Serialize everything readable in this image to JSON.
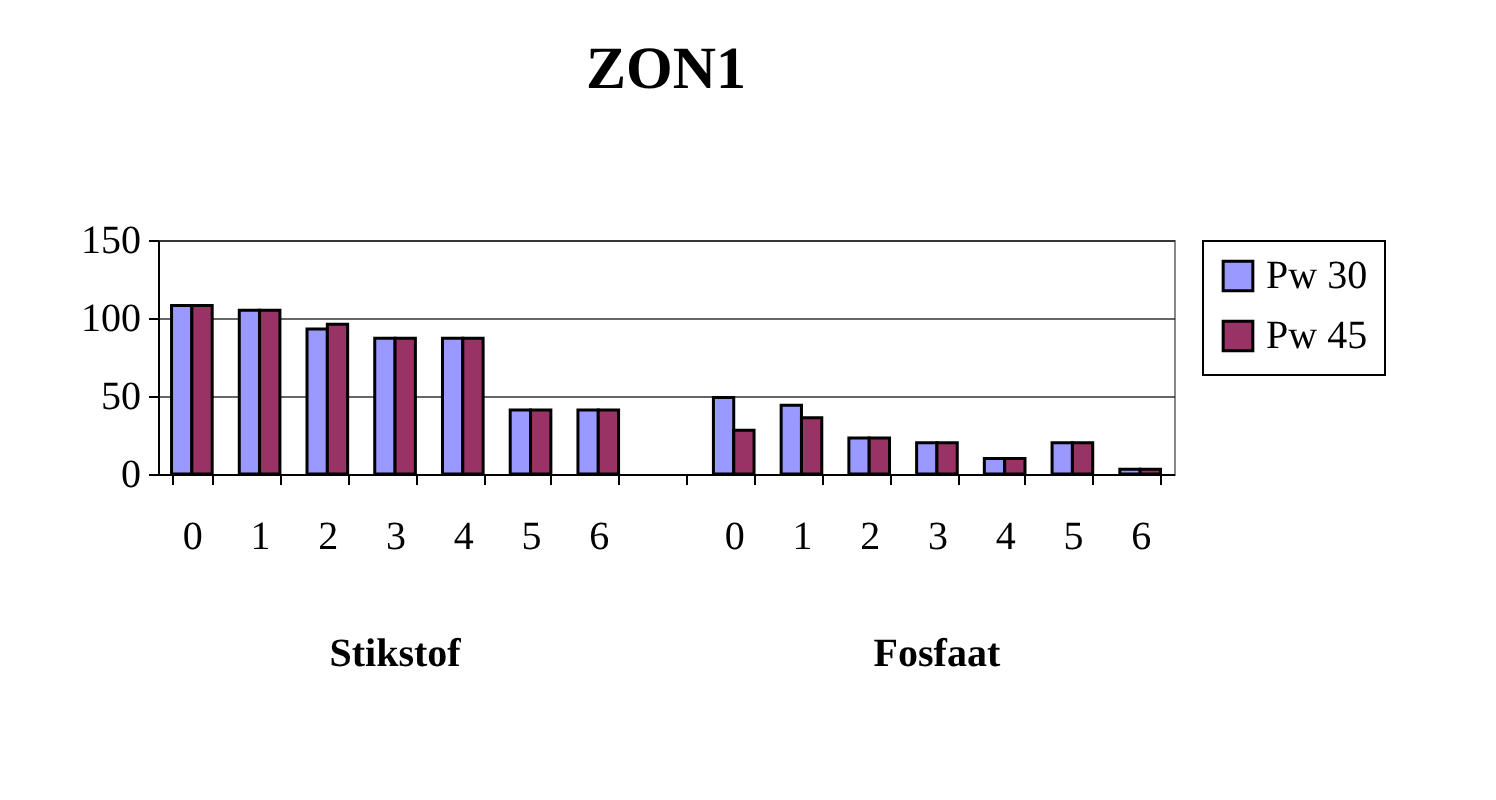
{
  "chart_data": {
    "type": "bar",
    "title": "ZON1",
    "categories": [
      "0",
      "1",
      "2",
      "3",
      "4",
      "5",
      "6",
      null,
      "0",
      "1",
      "2",
      "3",
      "4",
      "5",
      "6"
    ],
    "series": [
      {
        "name": "Pw 30",
        "color": "#9999ff",
        "values": [
          108,
          105,
          93,
          87,
          87,
          41,
          41,
          null,
          49,
          44,
          23,
          20,
          10,
          20,
          3
        ]
      },
      {
        "name": "Pw 45",
        "color": "#993366",
        "values": [
          108,
          105,
          96,
          87,
          87,
          41,
          41,
          null,
          28,
          36,
          23,
          20,
          10,
          20,
          3
        ]
      }
    ],
    "ylim": [
      0,
      150
    ],
    "yticks": [
      0,
      50,
      100,
      150
    ],
    "grid": "y",
    "legend": "right",
    "annotations": [
      "Stikstof",
      "Fosfaat"
    ]
  }
}
